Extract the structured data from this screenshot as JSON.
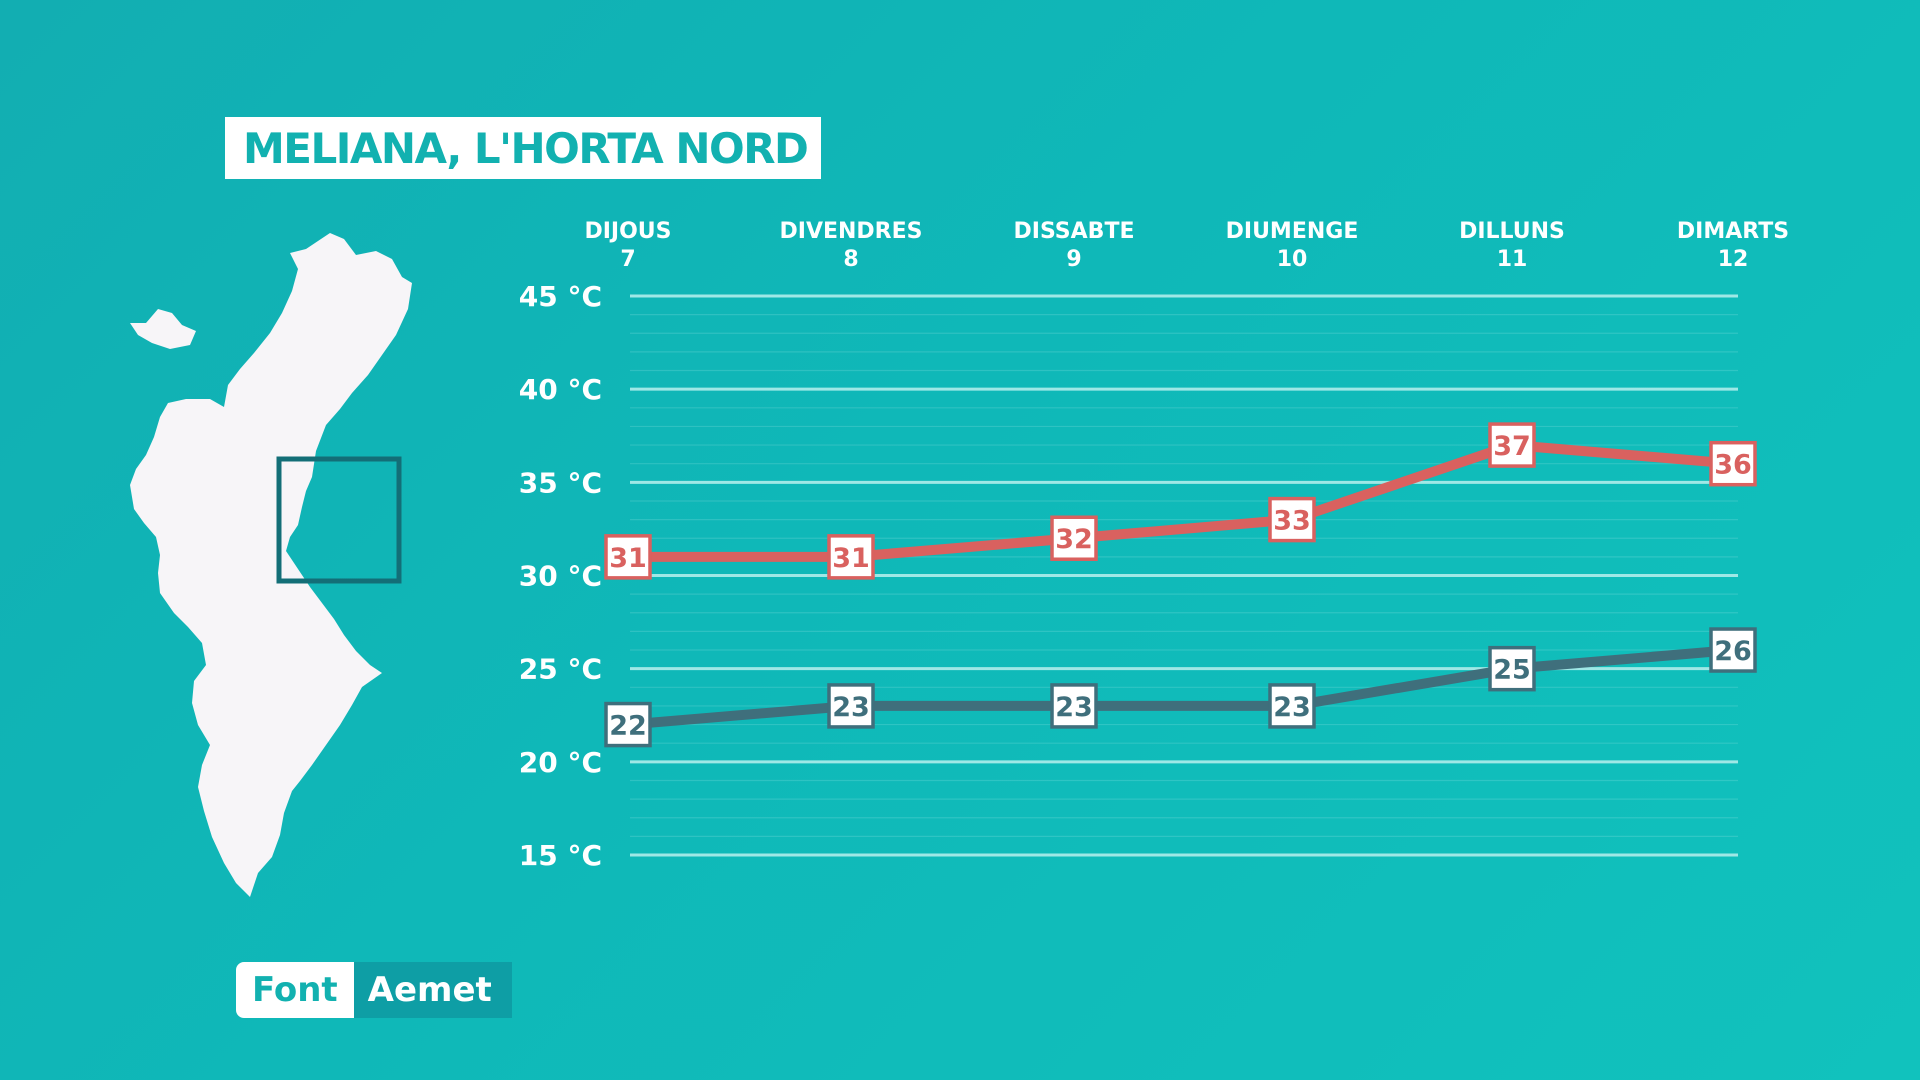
{
  "title": "MELIANA, L'HORTA NORD",
  "source": {
    "label": "Font",
    "value": "Aemet"
  },
  "colors": {
    "background": "#10b3b5",
    "max_line": "#d9615f",
    "min_line": "#3f6f7c",
    "grid": "#9fe8e6",
    "title_text": "#12b1b0",
    "map_fill": "#f7f5f8",
    "map_highlight": "#136e77"
  },
  "map": {
    "icon": "valencian-community-map-icon",
    "highlight": "horta-nord-region-box"
  },
  "chart_data": {
    "type": "line",
    "title": "MELIANA, L'HORTA NORD",
    "categories": [
      {
        "day": "DIJOUS",
        "date": "7"
      },
      {
        "day": "DIVENDRES",
        "date": "8"
      },
      {
        "day": "DISSABTE",
        "date": "9"
      },
      {
        "day": "DIUMENGE",
        "date": "10"
      },
      {
        "day": "DILLUNS",
        "date": "11"
      },
      {
        "day": "DIMARTS",
        "date": "12"
      }
    ],
    "series": [
      {
        "key": "max",
        "values": [
          31,
          31,
          32,
          33,
          37,
          36
        ]
      },
      {
        "key": "min",
        "values": [
          22,
          23,
          23,
          23,
          25,
          26
        ]
      }
    ],
    "ylim": [
      15,
      45
    ],
    "yticks": [
      45,
      40,
      35,
      30,
      25,
      20,
      15
    ],
    "ytick_labels": [
      "45 °C",
      "40 °C",
      "35 °C",
      "30 °C",
      "25 °C",
      "20 °C",
      "15 °C"
    ],
    "grid": true,
    "minor_grid_step": 1,
    "legend": "none"
  }
}
